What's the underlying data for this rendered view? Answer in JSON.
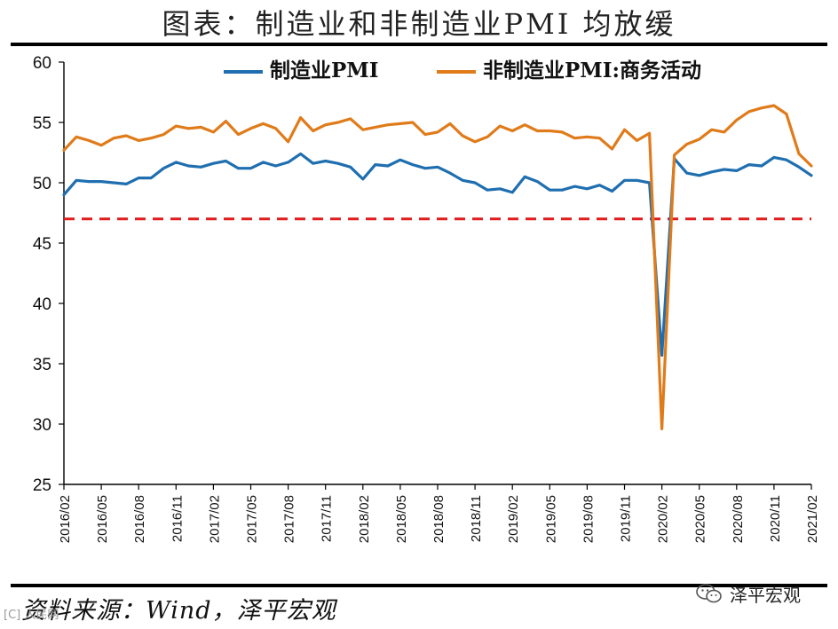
{
  "title": "图表：制造业和非制造业PMI 均放缓",
  "source": "资料来源：Wind，泽平宏观",
  "watermark": {
    "label": "泽平宏观",
    "icon": "chat-bubble-logo-icon",
    "corner": "[C] 人民网"
  },
  "chart_data": {
    "type": "line",
    "title": "图表：制造业和非制造业PMI 均放缓",
    "xlabel": "",
    "ylabel": "",
    "ylim": [
      25,
      60
    ],
    "yticks": [
      25,
      30,
      35,
      40,
      45,
      50,
      55,
      60
    ],
    "grid": false,
    "legend_position": "top",
    "reference_line": {
      "value": 47,
      "style": "dashed",
      "color": "#e11d1d"
    },
    "x": [
      "2016/02",
      "2016/03",
      "2016/04",
      "2016/05",
      "2016/06",
      "2016/07",
      "2016/08",
      "2016/09",
      "2016/10",
      "2016/11",
      "2016/12",
      "2017/01",
      "2017/02",
      "2017/03",
      "2017/04",
      "2017/05",
      "2017/06",
      "2017/07",
      "2017/08",
      "2017/09",
      "2017/10",
      "2017/11",
      "2017/12",
      "2018/01",
      "2018/02",
      "2018/03",
      "2018/04",
      "2018/05",
      "2018/06",
      "2018/07",
      "2018/08",
      "2018/09",
      "2018/10",
      "2018/11",
      "2018/12",
      "2019/01",
      "2019/02",
      "2019/03",
      "2019/04",
      "2019/05",
      "2019/06",
      "2019/07",
      "2019/08",
      "2019/09",
      "2019/10",
      "2019/11",
      "2019/12",
      "2020/01",
      "2020/02",
      "2020/03",
      "2020/04",
      "2020/05",
      "2020/06",
      "2020/07",
      "2020/08",
      "2020/09",
      "2020/10",
      "2020/11",
      "2020/12",
      "2021/01",
      "2021/02"
    ],
    "xtick_labels": [
      "2016/02",
      "2016/05",
      "2016/08",
      "2016/11",
      "2017/02",
      "2017/05",
      "2017/08",
      "2017/11",
      "2018/02",
      "2018/05",
      "2018/08",
      "2018/11",
      "2019/02",
      "2019/05",
      "2019/08",
      "2019/11",
      "2020/02",
      "2020/05",
      "2020/08",
      "2020/11",
      "2021/02"
    ],
    "series": [
      {
        "name": "制造业PMI",
        "color": "#1f6fb0",
        "values": [
          49.0,
          50.2,
          50.1,
          50.1,
          50.0,
          49.9,
          50.4,
          50.4,
          51.2,
          51.7,
          51.4,
          51.3,
          51.6,
          51.8,
          51.2,
          51.2,
          51.7,
          51.4,
          51.7,
          52.4,
          51.6,
          51.8,
          51.6,
          51.3,
          50.3,
          51.5,
          51.4,
          51.9,
          51.5,
          51.2,
          51.3,
          50.8,
          50.2,
          50.0,
          49.4,
          49.5,
          49.2,
          50.5,
          50.1,
          49.4,
          49.4,
          49.7,
          49.5,
          49.8,
          49.3,
          50.2,
          50.2,
          50.0,
          35.7,
          52.0,
          50.8,
          50.6,
          50.9,
          51.1,
          51.0,
          51.5,
          51.4,
          52.1,
          51.9,
          51.3,
          50.6
        ]
      },
      {
        "name": "非制造业PMI:商务活动",
        "color": "#e07b1a",
        "values": [
          52.7,
          53.8,
          53.5,
          53.1,
          53.7,
          53.9,
          53.5,
          53.7,
          54.0,
          54.7,
          54.5,
          54.6,
          54.2,
          55.1,
          54.0,
          54.5,
          54.9,
          54.5,
          53.4,
          55.4,
          54.3,
          54.8,
          55.0,
          55.3,
          54.4,
          54.6,
          54.8,
          54.9,
          55.0,
          54.0,
          54.2,
          54.9,
          53.9,
          53.4,
          53.8,
          54.7,
          54.3,
          54.8,
          54.3,
          54.3,
          54.2,
          53.7,
          53.8,
          53.7,
          52.8,
          54.4,
          53.5,
          54.1,
          29.6,
          52.3,
          53.2,
          53.6,
          54.4,
          54.2,
          55.2,
          55.9,
          56.2,
          56.4,
          55.7,
          52.4,
          51.4
        ]
      }
    ]
  }
}
